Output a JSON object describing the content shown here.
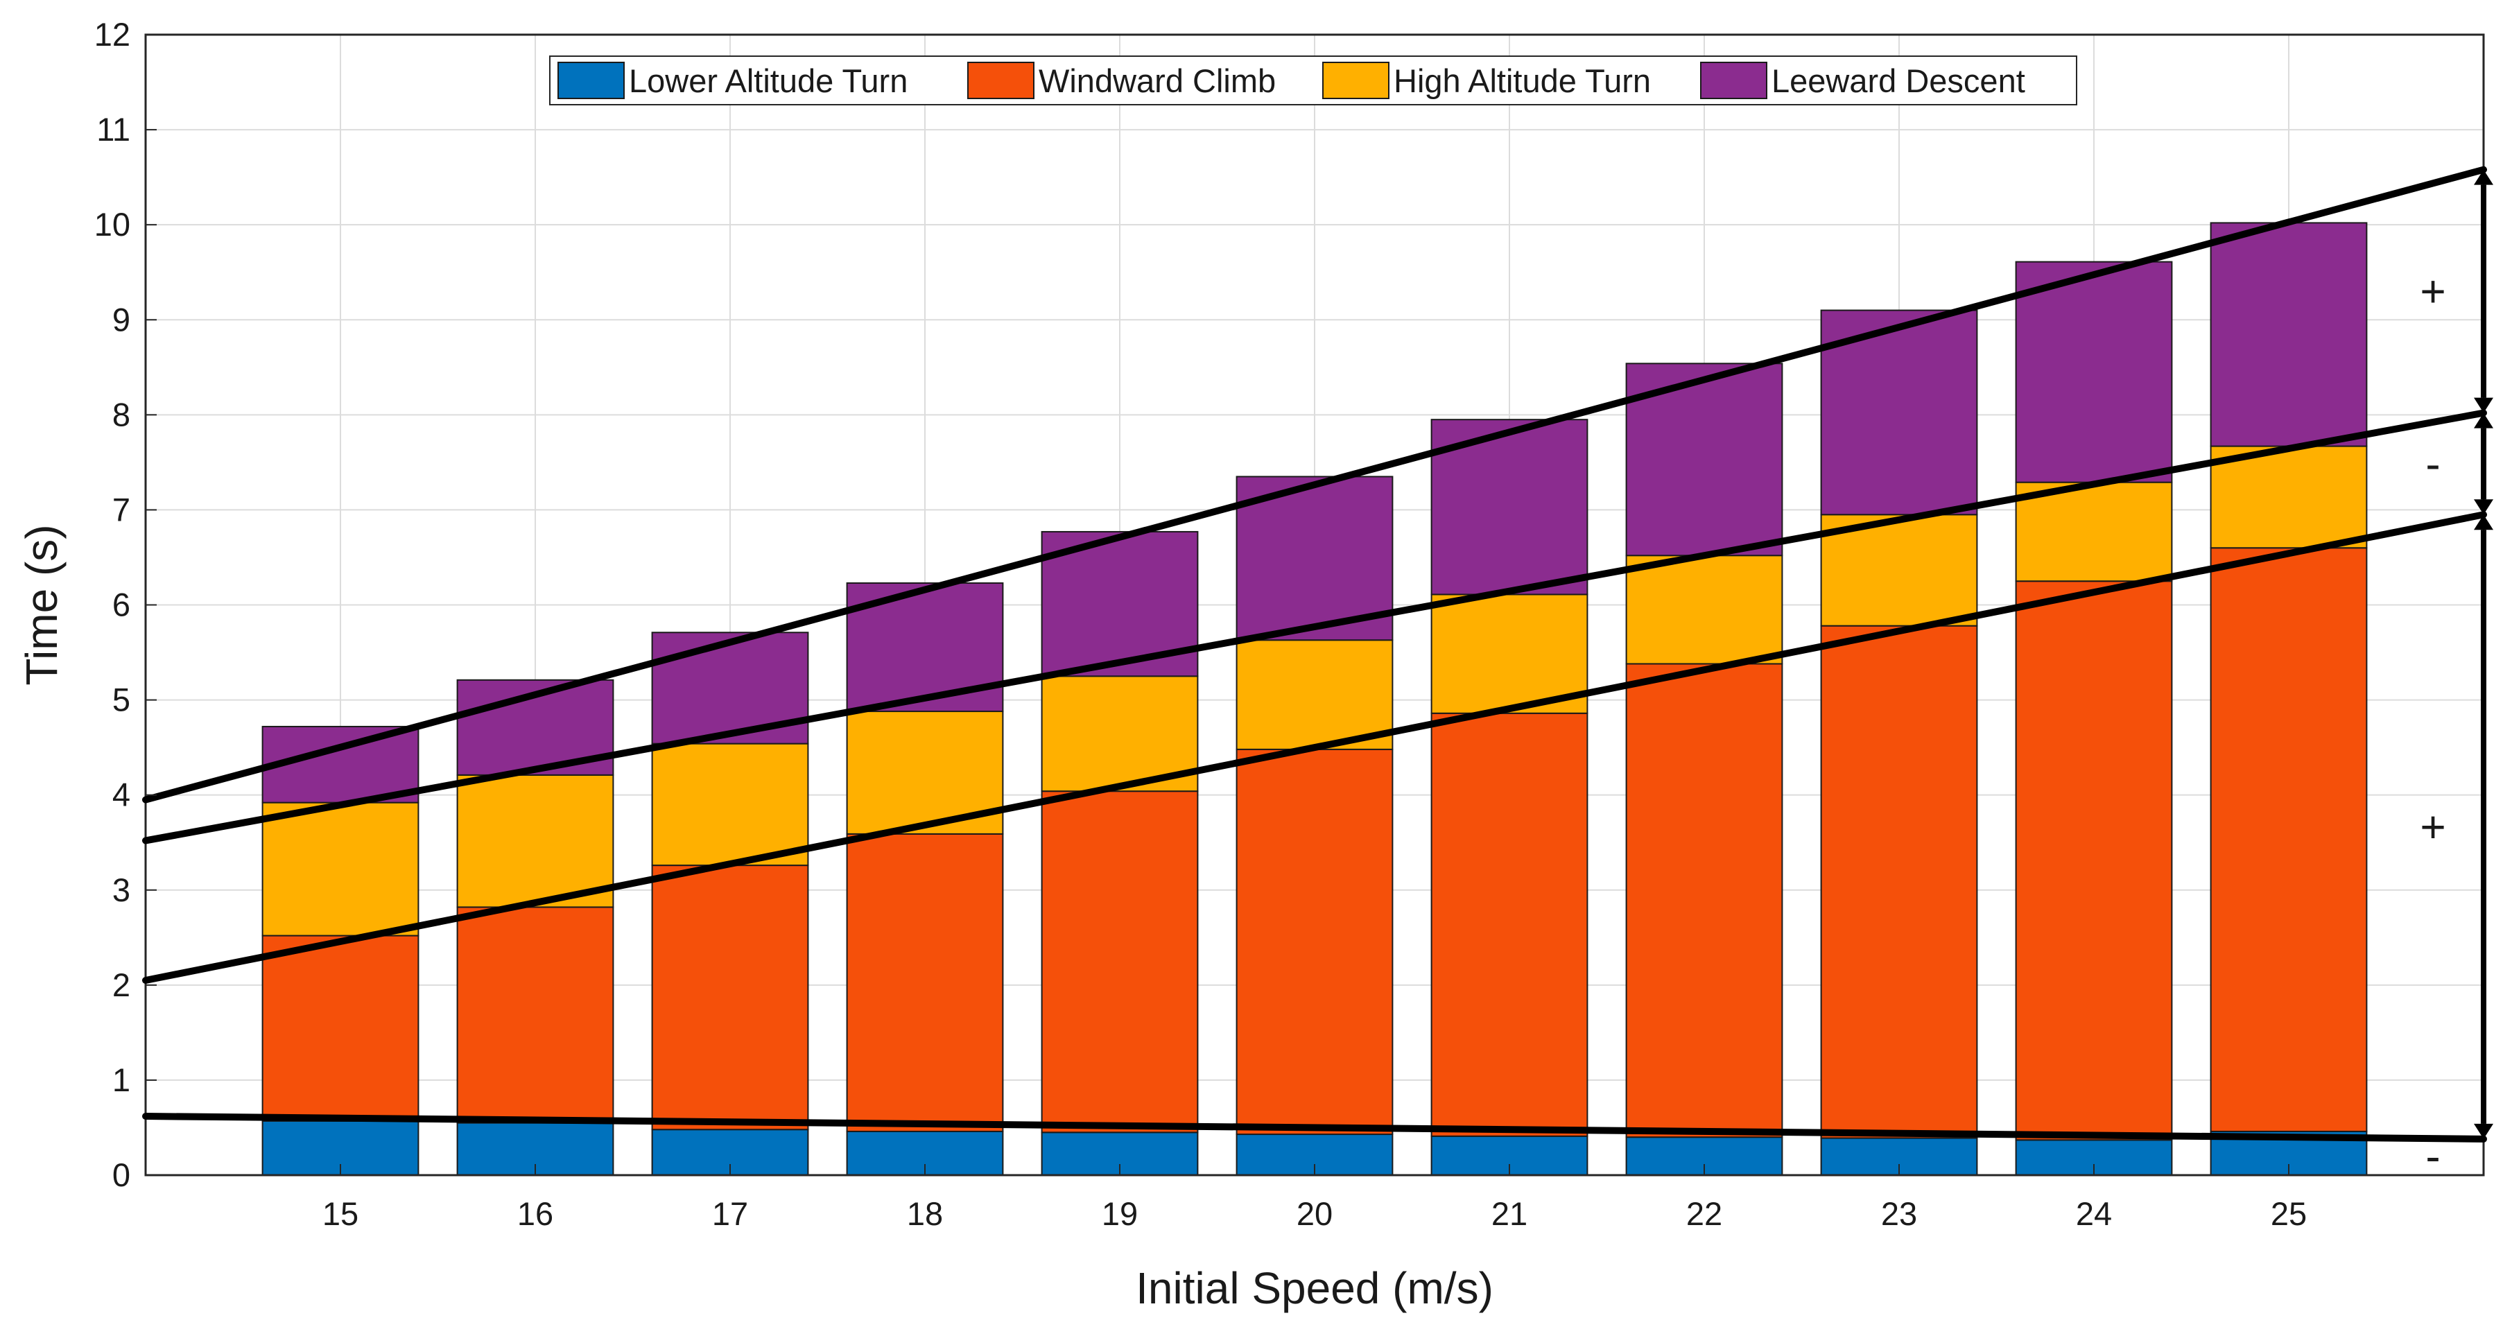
{
  "chart_data": {
    "type": "bar",
    "stacked": true,
    "title": "",
    "xlabel": "Initial Speed (m/s)",
    "ylabel": "Time (s)",
    "categories": [
      "15",
      "16",
      "17",
      "18",
      "19",
      "20",
      "21",
      "22",
      "23",
      "24",
      "25"
    ],
    "xlim": [
      14,
      26
    ],
    "ylim": [
      0,
      12
    ],
    "yticks": [
      0,
      1,
      2,
      3,
      4,
      5,
      6,
      7,
      8,
      9,
      10,
      11,
      12
    ],
    "grid": true,
    "legend_placement": "top",
    "series": [
      {
        "name": "Lower Altitude Turn",
        "color": "#0072BD",
        "values": [
          0.57,
          0.55,
          0.48,
          0.46,
          0.45,
          0.43,
          0.41,
          0.4,
          0.39,
          0.37,
          0.46
        ]
      },
      {
        "name": "Windward Climb",
        "color": "#F5500A",
        "values": [
          1.95,
          2.27,
          2.78,
          3.13,
          3.59,
          4.05,
          4.45,
          4.98,
          5.39,
          5.88,
          6.14
        ]
      },
      {
        "name": "High Altitude Turn",
        "color": "#FFB000",
        "values": [
          1.4,
          1.39,
          1.28,
          1.29,
          1.21,
          1.15,
          1.25,
          1.14,
          1.17,
          1.04,
          1.07
        ]
      },
      {
        "name": "Leeward Descent",
        "color": "#8B2C8F",
        "values": [
          0.8,
          1.0,
          1.17,
          1.35,
          1.52,
          1.72,
          1.84,
          2.02,
          2.15,
          2.32,
          2.35
        ]
      }
    ],
    "trend_lines": [
      {
        "x": [
          14,
          26
        ],
        "y": [
          0.62,
          0.38
        ]
      },
      {
        "x": [
          14,
          26
        ],
        "y": [
          2.05,
          6.95
        ]
      },
      {
        "x": [
          14,
          26
        ],
        "y": [
          3.52,
          8.02
        ]
      },
      {
        "x": [
          14,
          26
        ],
        "y": [
          3.95,
          10.58
        ]
      }
    ],
    "bracket_x": 26,
    "segments_right": [
      {
        "from": 10.58,
        "to": 8.02,
        "sign": "+"
      },
      {
        "from": 8.02,
        "to": 6.95,
        "sign": "-"
      },
      {
        "from": 6.95,
        "to": 0.38,
        "sign": "+"
      }
    ],
    "bottom_sign": "-",
    "bottom_sign_y": 0.2
  }
}
